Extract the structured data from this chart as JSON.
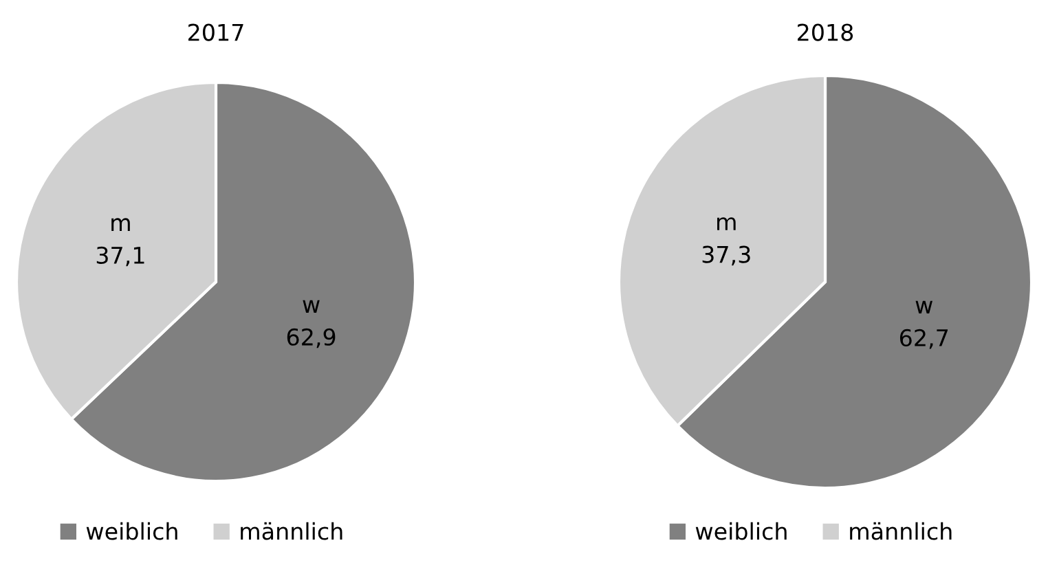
{
  "chart_data": [
    {
      "type": "pie",
      "title": "2017",
      "categories": [
        "weiblich",
        "männlich"
      ],
      "values": [
        62.9,
        37.1
      ],
      "colors": [
        "#808080",
        "#d0d0d0"
      ],
      "value_labels": [
        "w\n62,9",
        "m\n37,1"
      ],
      "legend": "bottom"
    },
    {
      "type": "pie",
      "title": "2018",
      "categories": [
        "weiblich",
        "männlich"
      ],
      "values": [
        62.7,
        37.3
      ],
      "colors": [
        "#808080",
        "#d0d0d0"
      ],
      "value_labels": [
        "w\n62,7",
        "m\n37,3"
      ],
      "legend": "bottom"
    }
  ]
}
